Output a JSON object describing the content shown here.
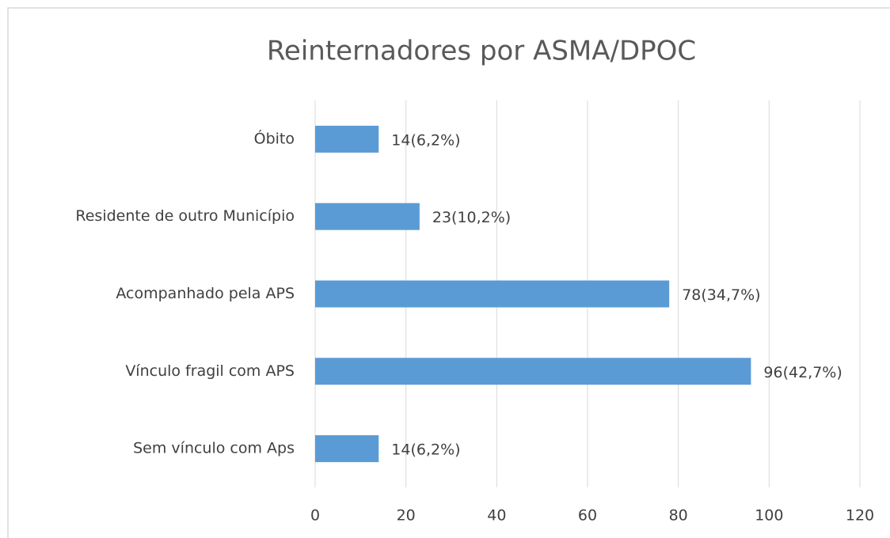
{
  "chart_data": {
    "type": "bar",
    "orientation": "horizontal",
    "title": "Reinternadores por ASMA/DPOC",
    "categories": [
      "Óbito",
      "Residente de outro Município",
      "Acompanhado pela APS",
      "Vínculo fragil com APS",
      "Sem vínculo com Aps"
    ],
    "values": [
      14,
      23,
      78,
      96,
      14
    ],
    "value_labels": [
      "14(6,2%)",
      "23(10,2%)",
      "78(34,7%)",
      "96(42,7%)",
      "14(6,2%)"
    ],
    "color": "#5b9bd5",
    "xlim": [
      0,
      120
    ],
    "xticks": [
      0,
      20,
      40,
      60,
      80,
      100,
      120
    ],
    "grid": true
  }
}
